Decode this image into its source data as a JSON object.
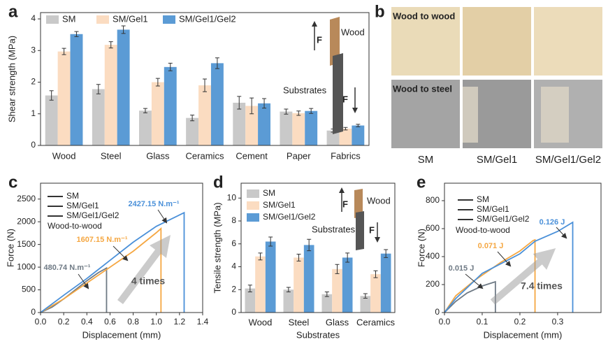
{
  "chart_data": [
    {
      "type": "bar",
      "panel_label": "a",
      "y_label": "Shear strength (MPa)",
      "categories": [
        "Wood",
        "Steel",
        "Glass",
        "Ceramics",
        "Cement",
        "Paper",
        "Fabrics"
      ],
      "series": [
        {
          "name": "SM",
          "color": "#c9c9c9",
          "values": [
            1.58,
            1.78,
            1.1,
            0.87,
            1.35,
            1.07,
            0.47
          ],
          "errors": [
            0.15,
            0.15,
            0.07,
            0.09,
            0.2,
            0.08,
            0.05
          ]
        },
        {
          "name": "SM/Gel1",
          "color": "#fbdcc1",
          "values": [
            2.97,
            3.18,
            2.0,
            1.9,
            1.25,
            1.02,
            0.53
          ],
          "errors": [
            0.1,
            0.1,
            0.12,
            0.2,
            0.25,
            0.07,
            0.04
          ]
        },
        {
          "name": "SM/Gel1/Gel2",
          "color": "#5b9bd5",
          "values": [
            3.52,
            3.66,
            2.48,
            2.6,
            1.33,
            1.09,
            0.63
          ],
          "errors": [
            0.08,
            0.12,
            0.12,
            0.17,
            0.15,
            0.08,
            0.04
          ]
        }
      ],
      "ylim": [
        0,
        4.2
      ],
      "yticks": [
        0,
        1,
        2,
        3,
        4
      ],
      "legend": "top-left",
      "annotations": [
        {
          "text": "Wood",
          "color": "#222222"
        },
        {
          "text": "Substrates",
          "color": "#222222"
        },
        {
          "text": "F",
          "color": "#222222"
        },
        {
          "text": "F",
          "color": "#222222"
        }
      ]
    },
    {
      "type": "line",
      "panel_label": "c",
      "x_label": "Displacement (mm)",
      "y_label": "Force (N)",
      "series": [
        {
          "name": "SM",
          "color": "#6f7a85",
          "x": [
            0,
            0.1,
            0.2,
            0.3,
            0.4,
            0.5,
            0.57,
            0.57
          ],
          "values": [
            0,
            120,
            300,
            500,
            700,
            880,
            980,
            0
          ]
        },
        {
          "name": "SM/Gel1",
          "color": "#f5a742",
          "x": [
            0,
            0.2,
            0.4,
            0.6,
            0.8,
            1.0,
            1.04,
            1.04
          ],
          "values": [
            0,
            300,
            650,
            1000,
            1350,
            1760,
            1850,
            0
          ]
        },
        {
          "name": "SM/Gel1/Gel2",
          "color": "#4a90d9",
          "x": [
            0,
            0.2,
            0.4,
            0.6,
            0.8,
            1.0,
            1.2,
            1.24,
            1.24
          ],
          "values": [
            0,
            380,
            750,
            1150,
            1550,
            1900,
            2150,
            2200,
            0
          ]
        }
      ],
      "xlim": [
        0,
        1.4
      ],
      "xticks": [
        {
          "value": 0,
          "label": "0.0"
        },
        0.2,
        0.4,
        0.6,
        0.8,
        {
          "value": 1,
          "label": "1.0"
        },
        1.2,
        1.4
      ],
      "ylim": [
        0,
        2850
      ],
      "yticks": [
        0,
        500,
        1000,
        1500,
        2000,
        2500
      ],
      "legend": "top-left",
      "annotations": [
        {
          "text": "Wood-to-wood",
          "color": "#222222"
        },
        {
          "text": "2427.15 N.m⁻¹",
          "color": "#4a90d9"
        },
        {
          "text": "1607.15 N.m⁻¹",
          "color": "#f5a742"
        },
        {
          "text": "480.74 N.m⁻¹",
          "color": "#6f7a85"
        },
        {
          "text": "4 times",
          "color": "#555555"
        }
      ]
    },
    {
      "type": "bar",
      "panel_label": "d",
      "x_label": "Substrates",
      "y_label": "Tensile strength (MPa)",
      "categories": [
        "Wood",
        "Steel",
        "Glass",
        "Ceramics"
      ],
      "series": [
        {
          "name": "SM",
          "color": "#c9c9c9",
          "values": [
            2.1,
            2.0,
            1.6,
            1.45
          ],
          "errors": [
            0.3,
            0.2,
            0.2,
            0.2
          ]
        },
        {
          "name": "SM/Gel1",
          "color": "#fbdcc1",
          "values": [
            4.9,
            4.8,
            3.8,
            3.35
          ],
          "errors": [
            0.3,
            0.3,
            0.4,
            0.3
          ]
        },
        {
          "name": "SM/Gel1/Gel2",
          "color": "#5b9bd5",
          "values": [
            6.2,
            5.9,
            4.8,
            5.15
          ],
          "errors": [
            0.4,
            0.5,
            0.4,
            0.35
          ]
        }
      ],
      "ylim": [
        0,
        11.3
      ],
      "yticks": [
        0,
        2,
        4,
        6,
        8,
        10
      ],
      "legend": "top-left",
      "annotations": [
        {
          "text": "Wood",
          "color": "#222222"
        },
        {
          "text": "Substrates",
          "color": "#222222"
        },
        {
          "text": "F",
          "color": "#222222"
        },
        {
          "text": "F",
          "color": "#222222"
        }
      ]
    },
    {
      "type": "line",
      "panel_label": "e",
      "x_label": "Displacement (mm)",
      "y_label": "Force (N)",
      "series": [
        {
          "name": "SM",
          "color": "#6f7a85",
          "x": [
            0,
            0.03,
            0.06,
            0.1,
            0.135,
            0.135
          ],
          "values": [
            0,
            80,
            140,
            190,
            220,
            0
          ]
        },
        {
          "name": "SM/Gel1",
          "color": "#f5a742",
          "x": [
            0,
            0.03,
            0.08,
            0.15,
            0.2,
            0.235,
            0.24,
            0.24
          ],
          "values": [
            0,
            120,
            230,
            360,
            440,
            515,
            520,
            0
          ]
        },
        {
          "name": "SM/Gel1/Gel2",
          "color": "#4a90d9",
          "x": [
            0,
            0.03,
            0.1,
            0.2,
            0.24,
            0.3,
            0.34,
            0.34
          ],
          "values": [
            0,
            100,
            280,
            420,
            510,
            580,
            645,
            0
          ]
        }
      ],
      "xlim": [
        0,
        0.415
      ],
      "xticks": [
        {
          "value": 0,
          "label": "0.0"
        },
        0.1,
        0.2,
        0.3
      ],
      "ylim": [
        0,
        925
      ],
      "yticks": [
        0,
        200,
        400,
        600,
        800
      ],
      "legend": "top-left",
      "annotations": [
        {
          "text": "Wood-to-wood",
          "color": "#222222"
        },
        {
          "text": "0.126 J",
          "color": "#4a90d9"
        },
        {
          "text": "0.071 J",
          "color": "#f5a742"
        },
        {
          "text": "0.015 J",
          "color": "#6f7a85"
        },
        {
          "text": "7.4 times",
          "color": "#555555"
        }
      ]
    }
  ],
  "photo_panel": {
    "panel_label": "b",
    "rows": [
      "Wood to wood",
      "Wood to steel"
    ],
    "columns": [
      "SM",
      "SM/Gel1",
      "SM/Gel1/Gel2"
    ]
  }
}
